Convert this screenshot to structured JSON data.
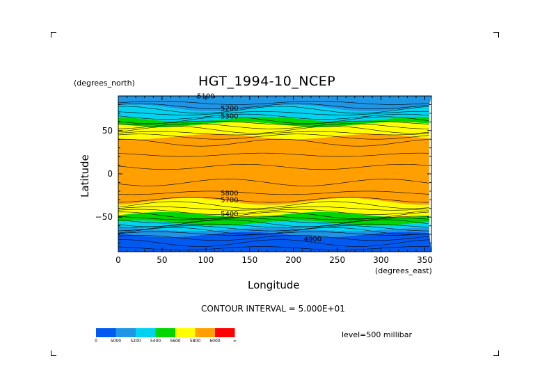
{
  "chart_data": {
    "type": "heatmap",
    "title": "HGT_1994-10_NCEP",
    "xlabel": "Longitude",
    "ylabel": "Latitude",
    "x_units": "(degrees_east)",
    "y_units": "(degrees_north)",
    "xlim": [
      0,
      357.5
    ],
    "ylim": [
      -90,
      90
    ],
    "x_ticks": [
      0,
      50,
      100,
      150,
      200,
      250,
      300,
      350
    ],
    "y_ticks": [
      50,
      0,
      -50
    ],
    "y_tick_labels": [
      "50",
      "0",
      "−50"
    ],
    "contour_interval_text": "CONTOUR INTERVAL = 5.000E+01",
    "level_text": "level=500 millibar",
    "contour_labels": [
      {
        "text": "5100",
        "lon": 100,
        "lat": 87
      },
      {
        "text": "5200",
        "lon": 127,
        "lat": 73
      },
      {
        "text": "5300",
        "lon": 127,
        "lat": 64
      },
      {
        "text": "5800",
        "lon": 127,
        "lat": -25
      },
      {
        "text": "5700",
        "lon": 127,
        "lat": -33
      },
      {
        "text": "5400",
        "lon": 127,
        "lat": -49
      },
      {
        "text": "4900",
        "lon": 222,
        "lat": -78
      }
    ],
    "bands": [
      {
        "from": 90,
        "to": 76,
        "color": "#1e96e6"
      },
      {
        "from": 76,
        "to": 63,
        "color": "#00d2f0"
      },
      {
        "from": 63,
        "to": 57,
        "color": "#00d700"
      },
      {
        "from": 57,
        "to": 43,
        "color": "#ffff00"
      },
      {
        "from": 43,
        "to": -32,
        "color": "#ffa000"
      },
      {
        "from": -32,
        "to": -47,
        "color": "#ffff00"
      },
      {
        "from": -47,
        "to": -57,
        "color": "#00d700"
      },
      {
        "from": -57,
        "to": -64,
        "color": "#00d2f0"
      },
      {
        "from": -64,
        "to": -70,
        "color": "#1e96e6"
      },
      {
        "from": -70,
        "to": -90,
        "color": "#005af0"
      }
    ],
    "legend": {
      "colors": [
        "#005af0",
        "#1e96e6",
        "#00d2f0",
        "#00d700",
        "#ffff00",
        "#ffa000",
        "#ff0000"
      ],
      "labels": [
        "0",
        "5000",
        "5200",
        "5400",
        "5600",
        "5800",
        "6000",
        "∞"
      ]
    }
  }
}
